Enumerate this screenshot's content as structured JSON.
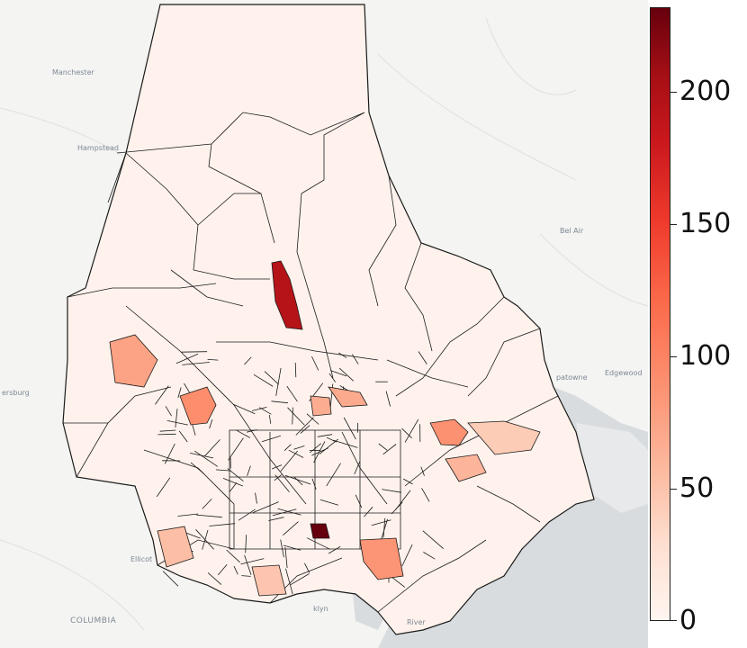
{
  "map": {
    "places": [
      {
        "name": "Manchester",
        "class": ""
      },
      {
        "name": "Hampstead",
        "class": ""
      },
      {
        "name": "Bel Air",
        "class": ""
      },
      {
        "name": "Edgewood",
        "class": ""
      },
      {
        "name": "patowne",
        "class": ""
      },
      {
        "name": "ersburg",
        "class": ""
      },
      {
        "name": "Ellicot",
        "class": ""
      },
      {
        "name": "COLUMBIA",
        "class": "big"
      },
      {
        "name": "klyn",
        "class": ""
      },
      {
        "name": "River",
        "class": ""
      }
    ],
    "fill_scale": {
      "min": 0,
      "max": 232,
      "colors": [
        "#fff5f0",
        "#fee0d2",
        "#fcbba1",
        "#fc9272",
        "#fb6a4a",
        "#ef3b2c",
        "#cb181d",
        "#a50f15",
        "#67000d"
      ]
    },
    "highlighted_region_values": [
      190,
      232,
      90,
      88,
      85,
      75,
      70,
      68,
      62,
      55,
      50,
      45
    ]
  },
  "colorbar": {
    "ticks": [
      {
        "value": 0,
        "label": "0"
      },
      {
        "value": 50,
        "label": "50"
      },
      {
        "value": 100,
        "label": "100"
      },
      {
        "value": 150,
        "label": "150"
      },
      {
        "value": 200,
        "label": "200"
      }
    ],
    "max": 232
  }
}
